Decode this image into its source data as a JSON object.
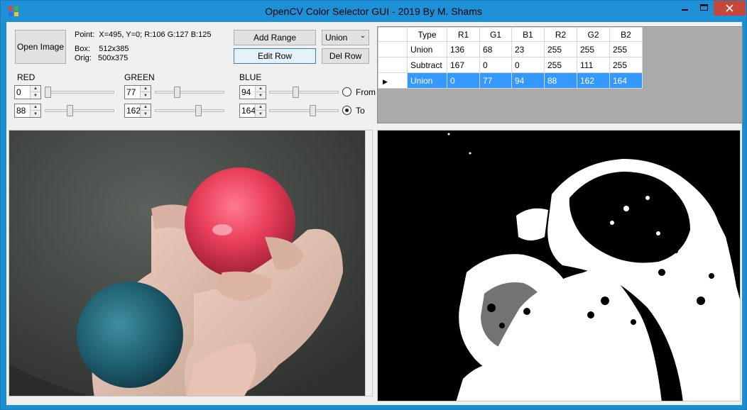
{
  "window": {
    "title": "OpenCV Color Selector GUI - 2019 By M. Shams",
    "minimize_glyph": "_",
    "maximize_glyph": "□",
    "close_glyph": "✕"
  },
  "toolbar": {
    "open_image": "Open Image",
    "add_range": "Add Range",
    "edit_row": "Edit Row",
    "del_row": "Del Row",
    "mode_selected": "Union"
  },
  "info": {
    "point_label": "Point:",
    "point_value": "X=495, Y=0; R:106 G:127 B:125",
    "box_label": "Box:",
    "box_value": "512x385",
    "orig_label": "Orig:",
    "orig_value": "500x375"
  },
  "channels": {
    "red": {
      "label": "RED",
      "from": "0",
      "to": "88",
      "from_level": 0.0,
      "to_level": 0.345
    },
    "green": {
      "label": "GREEN",
      "from": "77",
      "to": "162",
      "from_level": 0.302,
      "to_level": 0.635
    },
    "blue": {
      "label": "BLUE",
      "from": "94",
      "to": "164",
      "from_level": 0.369,
      "to_level": 0.643
    }
  },
  "radios": {
    "from_label": "From",
    "to_label": "To",
    "selected": "To"
  },
  "table": {
    "columns": [
      "Type",
      "R1",
      "G1",
      "B1",
      "R2",
      "G2",
      "B2"
    ],
    "rows": [
      [
        "Union",
        "136",
        "68",
        "23",
        "255",
        "255",
        "255"
      ],
      [
        "Subtract",
        "167",
        "0",
        "0",
        "255",
        "111",
        "255"
      ],
      [
        "Union",
        "0",
        "77",
        "94",
        "88",
        "162",
        "164"
      ]
    ],
    "selected_row": 2,
    "row_indicator": "▶"
  },
  "colors": {
    "title_bar": "#1e90d7",
    "selection": "#3399ff",
    "close_button": "#c7463a"
  },
  "icons": {
    "app": "app-icon",
    "spin_up": "▲",
    "spin_down": "▼",
    "combo_arrow": "⌄"
  }
}
